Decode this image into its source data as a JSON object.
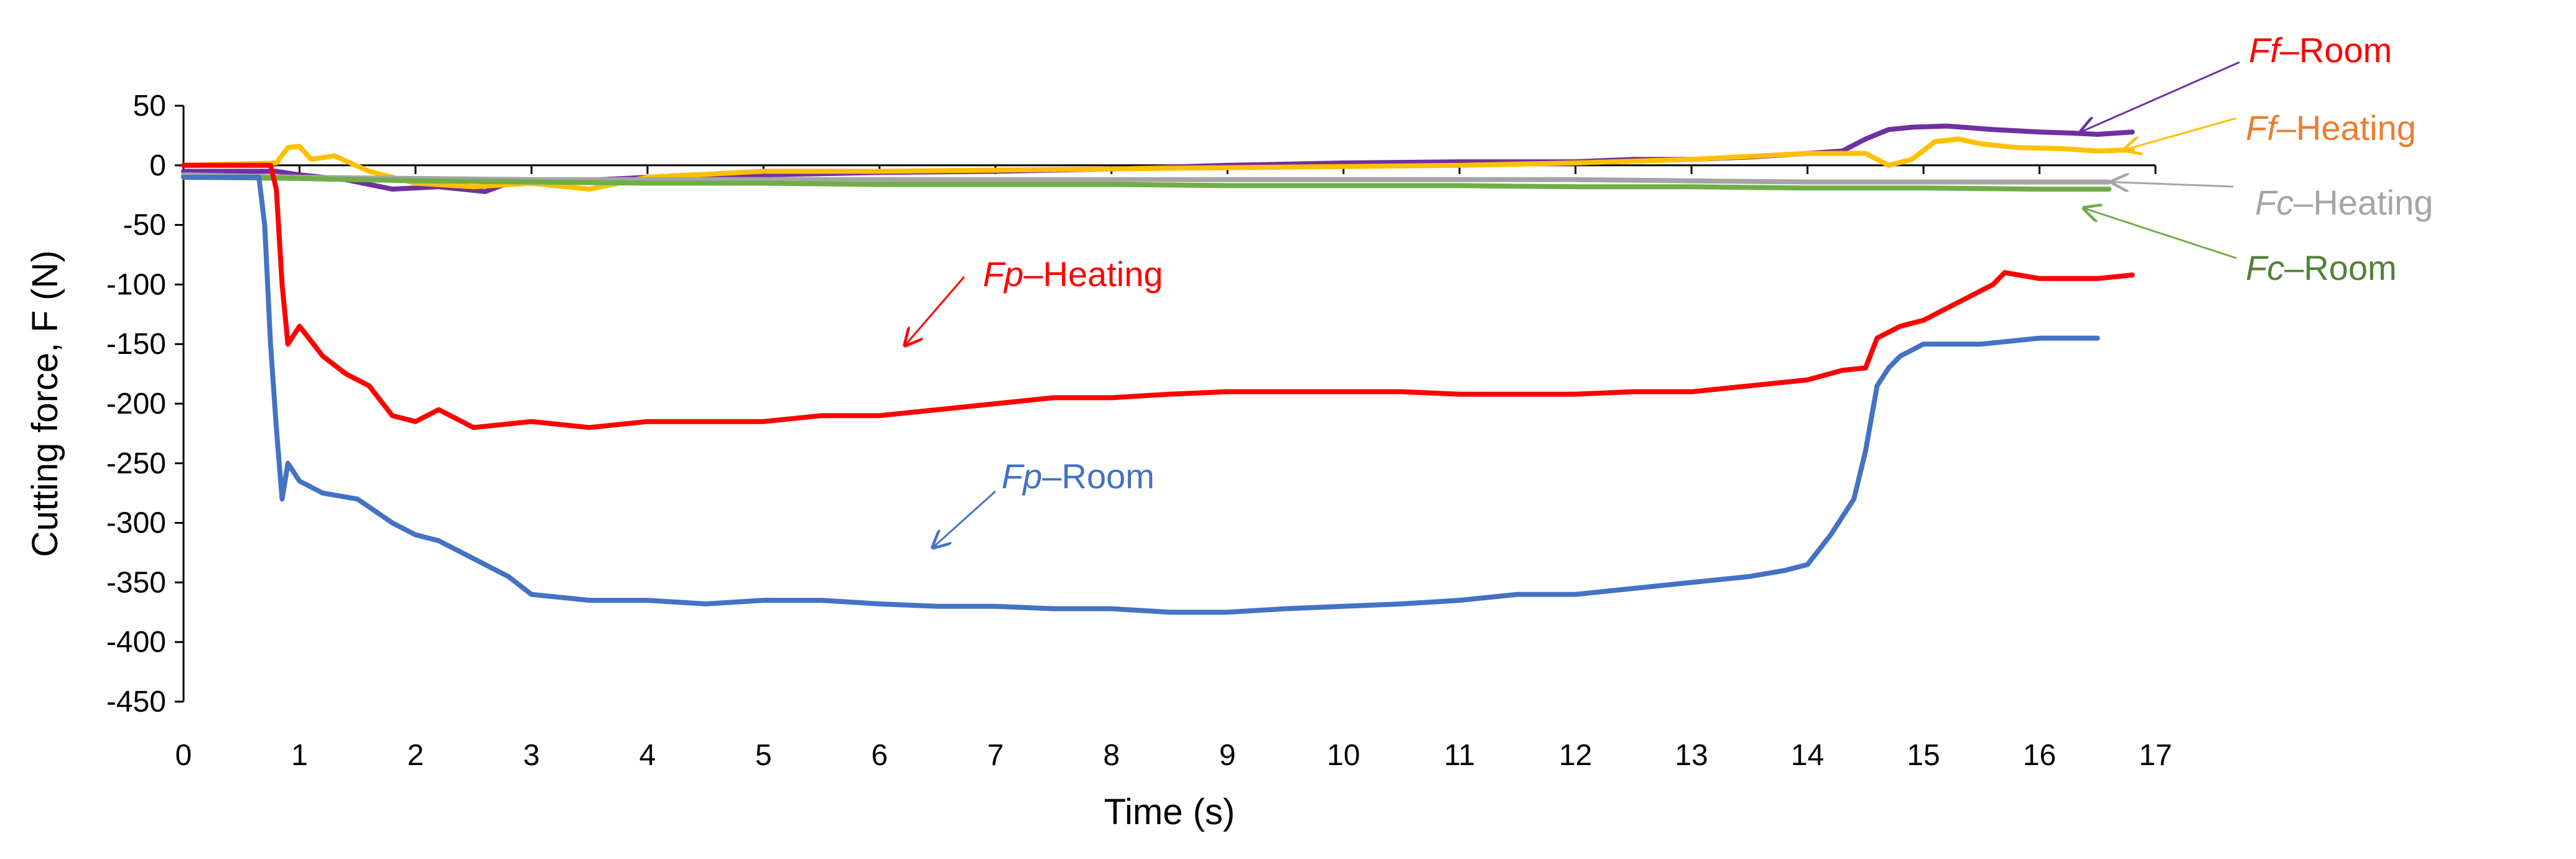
{
  "chart_data": {
    "type": "line",
    "title": "",
    "xlabel": "Time (s)",
    "ylabel": "Cutting force, F (N)",
    "xlim": [
      0,
      17
    ],
    "ylim": [
      -450,
      50
    ],
    "xticks": [
      "0",
      "1",
      "2",
      "3",
      "4",
      "5",
      "6",
      "7",
      "8",
      "9",
      "10",
      "11",
      "12",
      "13",
      "14",
      "15",
      "16",
      "17"
    ],
    "yticks": [
      "50",
      "0",
      "-50",
      "-100",
      "-150",
      "-200",
      "-250",
      "-300",
      "-350",
      "-400",
      "-450"
    ],
    "legend": "right (annotated labels with arrows)",
    "series": [
      {
        "name": "Ff–Room",
        "italic": "Ff",
        "suffix": "–Room",
        "color": "#7030A0",
        "label_color": "#FF0000",
        "x": [
          0,
          0.8,
          1.0,
          1.4,
          1.8,
          2.2,
          2.6,
          2.8,
          3.2,
          3.6,
          4.0,
          4.4,
          5.0,
          6.0,
          7.0,
          8.0,
          9.0,
          10.0,
          11.0,
          12.0,
          12.5,
          13.0,
          13.5,
          14.0,
          14.3,
          14.5,
          14.7,
          14.9,
          15.2,
          15.6,
          16.0,
          16.3,
          16.5,
          16.8
        ],
        "values": [
          -5,
          -5,
          -8,
          -12,
          -20,
          -18,
          -22,
          -15,
          -14,
          -12,
          -10,
          -8,
          -8,
          -6,
          -5,
          -3,
          0,
          2,
          3,
          3,
          5,
          5,
          7,
          10,
          12,
          22,
          30,
          32,
          33,
          30,
          28,
          27,
          26,
          28
        ]
      },
      {
        "name": "Ff–Heating",
        "italic": "Ff",
        "suffix": "–Heating",
        "color": "#FFC000",
        "label_color": "#ED7D31",
        "x": [
          0,
          0.8,
          0.9,
          1.0,
          1.1,
          1.3,
          1.6,
          2.0,
          2.5,
          3.0,
          3.5,
          4.0,
          5.0,
          6.0,
          7.0,
          8.0,
          9.0,
          10.0,
          11.0,
          12.0,
          13.0,
          14.0,
          14.5,
          14.7,
          14.9,
          15.1,
          15.3,
          15.5,
          15.8,
          16.2,
          16.5,
          16.8
        ],
        "values": [
          0,
          2,
          15,
          16,
          5,
          8,
          -5,
          -15,
          -18,
          -15,
          -20,
          -10,
          -5,
          -5,
          -4,
          -3,
          -2,
          -1,
          0,
          2,
          5,
          10,
          10,
          0,
          5,
          20,
          22,
          18,
          15,
          14,
          12,
          13
        ]
      },
      {
        "name": "Fc–Heating",
        "italic": "Fc",
        "suffix": "–Heating",
        "color": "#A5A5A5",
        "label_color": "#A5A5A5",
        "x": [
          0,
          1.0,
          2.0,
          3.0,
          4.0,
          5.0,
          6.0,
          7.0,
          8.0,
          9.0,
          10.0,
          11.0,
          12.0,
          13.0,
          14.0,
          15.0,
          16.0,
          16.6
        ],
        "values": [
          -8,
          -10,
          -11,
          -12,
          -12,
          -12,
          -12,
          -12,
          -12,
          -12,
          -12,
          -12,
          -12,
          -13,
          -14,
          -14,
          -14,
          -14
        ]
      },
      {
        "name": "Fc–Room",
        "italic": "Fc",
        "suffix": "–Room",
        "color": "#70AD47",
        "label_color": "#548235",
        "x": [
          0,
          1.0,
          2.0,
          3.0,
          4.0,
          5.0,
          6.0,
          7.0,
          8.0,
          9.0,
          10.0,
          11.0,
          12.0,
          13.0,
          14.0,
          15.0,
          16.0,
          16.6
        ],
        "values": [
          -10,
          -11,
          -13,
          -14,
          -15,
          -15,
          -16,
          -16,
          -16,
          -17,
          -17,
          -17,
          -18,
          -18,
          -19,
          -19,
          -20,
          -20
        ]
      },
      {
        "name": "Fp–Heating",
        "italic": "Fp",
        "suffix": "–Heating",
        "color": "#FF0000",
        "label_color": "#FF0000",
        "x": [
          0,
          0.75,
          0.8,
          0.85,
          0.9,
          1.0,
          1.2,
          1.4,
          1.6,
          1.8,
          2.0,
          2.2,
          2.5,
          3.0,
          3.5,
          4.0,
          4.5,
          5.0,
          5.5,
          6.0,
          6.5,
          7.0,
          7.5,
          8.0,
          8.5,
          9.0,
          9.5,
          10.0,
          10.5,
          11.0,
          11.5,
          12.0,
          12.5,
          13.0,
          13.5,
          14.0,
          14.3,
          14.5,
          14.6,
          14.8,
          15.0,
          15.3,
          15.6,
          15.7,
          16.0,
          16.5,
          16.8
        ],
        "values": [
          0,
          0,
          -20,
          -100,
          -150,
          -135,
          -160,
          -175,
          -185,
          -210,
          -215,
          -205,
          -220,
          -215,
          -220,
          -215,
          -215,
          -215,
          -210,
          -210,
          -205,
          -200,
          -195,
          -195,
          -192,
          -190,
          -190,
          -190,
          -190,
          -192,
          -192,
          -192,
          -190,
          -190,
          -185,
          -180,
          -172,
          -170,
          -145,
          -135,
          -130,
          -115,
          -100,
          -90,
          -95,
          -95,
          -92
        ]
      },
      {
        "name": "Fp–Room",
        "italic": "Fp",
        "suffix": "–Room",
        "color": "#4472C4",
        "label_color": "#4472C4",
        "x": [
          0,
          0.65,
          0.7,
          0.75,
          0.8,
          0.85,
          0.9,
          1.0,
          1.2,
          1.5,
          1.8,
          2.0,
          2.2,
          2.5,
          2.8,
          3.0,
          3.5,
          4.0,
          4.5,
          5.0,
          5.5,
          6.0,
          6.5,
          7.0,
          7.5,
          8.0,
          8.5,
          9.0,
          9.5,
          10.0,
          10.5,
          11.0,
          11.5,
          12.0,
          12.5,
          13.0,
          13.5,
          13.8,
          14.0,
          14.2,
          14.4,
          14.5,
          14.6,
          14.7,
          14.8,
          15.0,
          15.5,
          16.0,
          16.5
        ],
        "values": [
          -10,
          -10,
          -50,
          -150,
          -220,
          -280,
          -250,
          -265,
          -275,
          -280,
          -300,
          -310,
          -315,
          -330,
          -345,
          -360,
          -365,
          -365,
          -368,
          -365,
          -365,
          -368,
          -370,
          -370,
          -372,
          -372,
          -375,
          -375,
          -372,
          -370,
          -368,
          -365,
          -360,
          -360,
          -355,
          -350,
          -345,
          -340,
          -335,
          -310,
          -280,
          -240,
          -185,
          -170,
          -160,
          -150,
          -150,
          -145,
          -145
        ]
      }
    ]
  }
}
